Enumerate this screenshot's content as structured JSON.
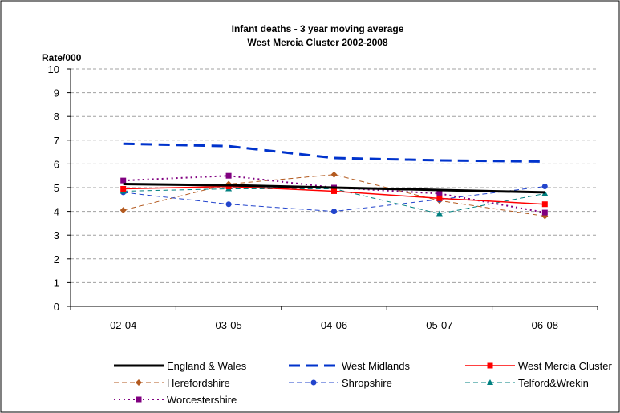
{
  "chart_data": {
    "type": "line",
    "title": "Infant deaths - 3 year moving average",
    "subtitle": "West Mercia Cluster 2002-2008",
    "xlabel": "",
    "ylabel": "Rate/000",
    "ylim": [
      0,
      10
    ],
    "yticks": [
      "0",
      "1",
      "2",
      "3",
      "4",
      "5",
      "6",
      "7",
      "8",
      "9",
      "10"
    ],
    "categories": [
      "02-04",
      "03-05",
      "04-06",
      "05-07",
      "06-08"
    ],
    "grid": true,
    "legend_position": "bottom",
    "series": [
      {
        "name": "England & Wales",
        "values": [
          5.15,
          5.1,
          5.0,
          4.9,
          4.8
        ],
        "color": "#000000",
        "style": "solid-thick",
        "marker": "none"
      },
      {
        "name": "West Midlands",
        "values": [
          6.85,
          6.75,
          6.25,
          6.15,
          6.1
        ],
        "color": "#0033cc",
        "style": "long-dash",
        "marker": "none"
      },
      {
        "name": "West Mercia Cluster",
        "values": [
          4.95,
          5.05,
          4.85,
          4.55,
          4.3
        ],
        "color": "#ff0000",
        "style": "solid",
        "marker": "square"
      },
      {
        "name": "Herefordshire",
        "values": [
          4.05,
          5.15,
          5.55,
          4.45,
          3.8
        ],
        "color": "#b35a1f",
        "style": "dashed",
        "marker": "diamond"
      },
      {
        "name": "Shropshire",
        "values": [
          4.8,
          4.3,
          4.0,
          4.5,
          5.05
        ],
        "color": "#2244cc",
        "style": "dashed",
        "marker": "circle"
      },
      {
        "name": "Telford&Wrekin",
        "values": [
          4.85,
          4.95,
          4.95,
          3.9,
          4.75
        ],
        "color": "#008080",
        "style": "dashed",
        "marker": "triangle"
      },
      {
        "name": "Worcestershire",
        "values": [
          5.3,
          5.5,
          5.0,
          4.75,
          3.95
        ],
        "color": "#800080",
        "style": "dotted",
        "marker": "square"
      }
    ]
  }
}
